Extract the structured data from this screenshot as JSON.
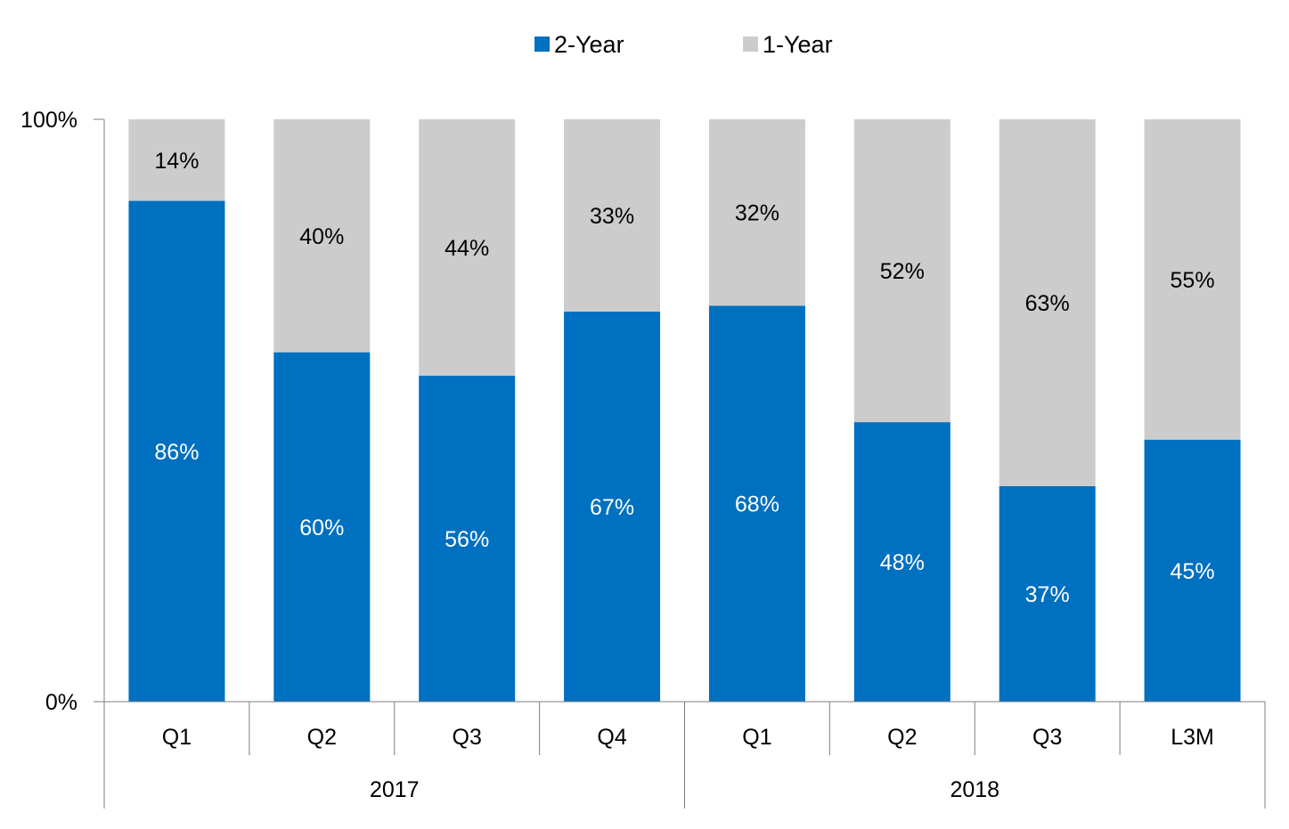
{
  "chart_data": {
    "type": "bar",
    "stacked": true,
    "stacking": "percent",
    "categories": [
      "Q1",
      "Q2",
      "Q3",
      "Q4",
      "Q1",
      "Q2",
      "Q3",
      "L3M"
    ],
    "groups": [
      {
        "label": "2017",
        "start": 0,
        "end": 3
      },
      {
        "label": "2018",
        "start": 4,
        "end": 7
      }
    ],
    "series": [
      {
        "name": "2-Year",
        "color": "#0070c0",
        "label_color": "#ffffff",
        "values": [
          86,
          60,
          56,
          67,
          68,
          48,
          37,
          45
        ],
        "labels": [
          "86%",
          "60%",
          "56%",
          "67%",
          "68%",
          "48%",
          "37%",
          "45%"
        ]
      },
      {
        "name": "1-Year",
        "color": "#cccccc",
        "label_color": "#000000",
        "values": [
          14,
          40,
          44,
          33,
          32,
          52,
          63,
          55
        ],
        "labels": [
          "14%",
          "40%",
          "44%",
          "33%",
          "32%",
          "52%",
          "63%",
          "55%"
        ]
      }
    ],
    "ylim": [
      0,
      100
    ],
    "yticks": [
      {
        "value": 0,
        "label": "0%"
      },
      {
        "value": 100,
        "label": "100%"
      }
    ],
    "grid": false,
    "legend_position": "top-center",
    "title": "",
    "xlabel": "",
    "ylabel": ""
  }
}
